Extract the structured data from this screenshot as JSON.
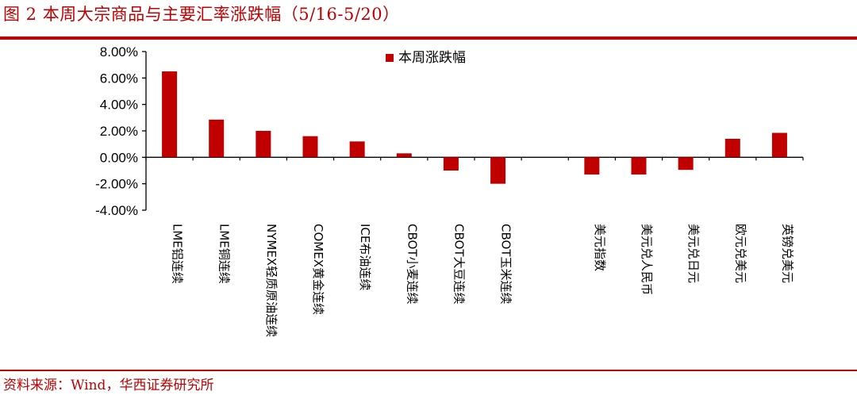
{
  "header": {
    "title": "图 2 本周大宗商品与主要汇率涨跌幅（5/16-5/20）"
  },
  "footer": {
    "source": "资料来源：Wind，华西证券研究所"
  },
  "colors": {
    "accent": "#c00000",
    "bar": "#c00000",
    "axis": "#000000"
  },
  "chart_data": {
    "type": "bar",
    "title": "",
    "xlabel": "",
    "ylabel": "",
    "ylim": [
      -0.04,
      0.08
    ],
    "y_ticks": [
      "8.00%",
      "6.00%",
      "4.00%",
      "2.00%",
      "0.00%",
      "-2.00%",
      "-4.00%"
    ],
    "y_tick_values": [
      0.08,
      0.06,
      0.04,
      0.02,
      0.0,
      -0.02,
      -0.04
    ],
    "legend_position": "top-center",
    "grid": false,
    "categories": [
      "LME铝连续",
      "LME铜连续",
      "NYMEX轻质原油连续",
      "COMEX黄金连续",
      "ICE布油连续",
      "CBOT小麦连续",
      "CBOT大豆连续",
      "CBOT玉米连续",
      "",
      "美元指数",
      "美元兑人民币",
      "美元兑日元",
      "欧元兑美元",
      "英镑兑美元"
    ],
    "series": [
      {
        "name": "本周涨跌幅",
        "values": [
          0.065,
          0.0285,
          0.02,
          0.016,
          0.012,
          0.003,
          -0.01,
          -0.02,
          null,
          -0.013,
          -0.013,
          -0.0095,
          0.014,
          0.0185
        ]
      }
    ]
  }
}
